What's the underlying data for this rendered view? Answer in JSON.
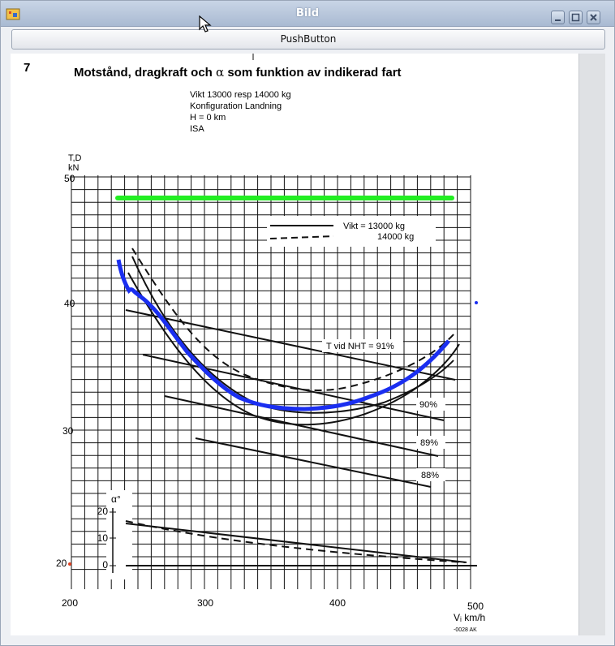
{
  "window": {
    "title": "Bild",
    "minimize_icon": "minimize-icon",
    "maximize_icon": "maximize-icon",
    "close_icon": "close-icon",
    "app_icon": "image-viewer-icon"
  },
  "toolbar": {
    "push_button_label": "PushButton"
  },
  "figure": {
    "page_number": "7",
    "title_prefix": "Motstånd, dragkraft och ",
    "title_alpha": "α",
    "title_suffix": " som funktion av indikerad fart",
    "conditions": [
      "Vikt 13000 resp 14000 kg",
      "Konfiguration Landning",
      "H = 0 km",
      "ISA"
    ],
    "y_axis_unit_top": "T,D",
    "y_axis_unit_bottom": "kN",
    "alpha_axis_label": "α°",
    "x_axis_label": "Vᵢ km/h",
    "footer_code": "-0028 AK",
    "legend": {
      "solid_label": "Vikt  =   13000 kg",
      "dashed_label": "14000 kg"
    },
    "thrust_labels": [
      "T vid NHT = 91%",
      "90%",
      "89%",
      "88%"
    ],
    "x_ticks": [
      "200",
      "300",
      "400",
      "500"
    ],
    "y_ticks": [
      "20",
      "30",
      "40",
      "50"
    ],
    "alpha_ticks": [
      "0",
      "10",
      "20"
    ]
  },
  "overlay": {
    "green_line_color": "#22ee22",
    "blue_curve_color": "#1a2ef0"
  }
}
